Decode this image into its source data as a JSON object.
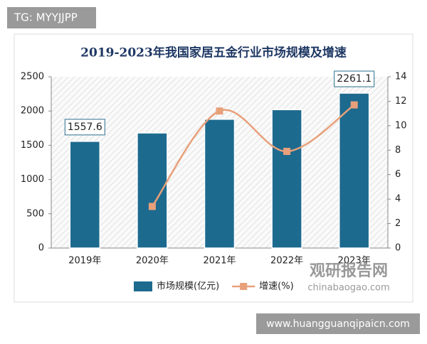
{
  "chart_data": {
    "type": "bar-line",
    "title": "2019-2023年我国家居五金行业市场规模及增速",
    "categories": [
      "2019年",
      "2020年",
      "2021年",
      "2022年",
      "2023年"
    ],
    "series": [
      {
        "name": "市场规模(亿元)",
        "type": "bar",
        "color": "#1d6a8f",
        "values": [
          1557.6,
          1680,
          1880,
          2020,
          2261.1
        ],
        "value_labels": [
          "1557.6",
          null,
          null,
          null,
          "2261.1"
        ]
      },
      {
        "name": "增速(%)",
        "type": "line",
        "color": "#e8a07a",
        "axis": "y2",
        "values": [
          null,
          3.4,
          11.2,
          7.9,
          11.7
        ]
      }
    ],
    "ylim": [
      0,
      2500
    ],
    "yticks": [
      0,
      500,
      1000,
      1500,
      2000,
      2500
    ],
    "y2lim": [
      0,
      14
    ],
    "y2ticks": [
      0,
      2,
      4,
      6,
      8,
      10,
      12,
      14
    ],
    "legend": "bottom"
  },
  "overlay": {
    "tag": "TG: MYYJJPP",
    "brand": "观研报告网",
    "brand_url": "chinabaogao.com",
    "site": "www.huangguanqipaicn.com"
  }
}
